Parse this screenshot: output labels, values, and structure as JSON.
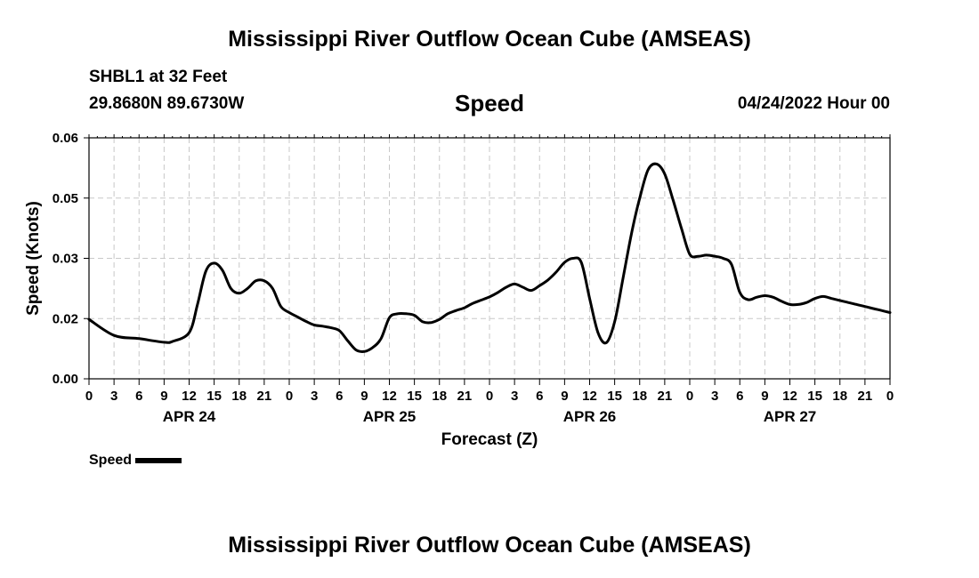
{
  "header": {
    "title": "Mississippi River Outflow Ocean Cube (AMSEAS)",
    "station": "SHBL1 at 32 Feet",
    "coords": "29.8680N  89.6730W",
    "subtitle": "Speed",
    "date": "04/24/2022 Hour 00"
  },
  "footer": {
    "title": "Mississippi River Outflow Ocean Cube (AMSEAS)"
  },
  "legend": {
    "label": "Speed"
  },
  "chart_data": {
    "type": "line",
    "title": "Speed",
    "xlabel": "Forecast (Z)",
    "ylabel": "Speed (Knots)",
    "xlim": [
      0,
      96
    ],
    "ylim": [
      0,
      0.06
    ],
    "yticks": [
      "0.00",
      "0.02",
      "0.03",
      "0.05",
      "0.06"
    ],
    "ytick_values": [
      0.0,
      0.015,
      0.03,
      0.045,
      0.06
    ],
    "xtick_labels": [
      "0",
      "3",
      "6",
      "9",
      "12",
      "15",
      "18",
      "21",
      "0",
      "3",
      "6",
      "9",
      "12",
      "15",
      "18",
      "21",
      "0",
      "3",
      "6",
      "9",
      "12",
      "15",
      "18",
      "21",
      "0",
      "3",
      "6",
      "9",
      "12",
      "15",
      "18",
      "21",
      "0"
    ],
    "day_labels": [
      {
        "label": "APR 24",
        "hour": 12
      },
      {
        "label": "APR 25",
        "hour": 36
      },
      {
        "label": "APR 26",
        "hour": 60
      },
      {
        "label": "APR 27",
        "hour": 84
      }
    ],
    "grid": true,
    "legend_position": "bottom-left",
    "series": [
      {
        "name": "Speed",
        "color": "#000000",
        "x": [
          0,
          3,
          6,
          9,
          10,
          12,
          13,
          14,
          15,
          16,
          17,
          18,
          19,
          20,
          21,
          22,
          23,
          24,
          25,
          26,
          27,
          28,
          29,
          30,
          31,
          32,
          33,
          34,
          35,
          36,
          37,
          38,
          39,
          40,
          41,
          42,
          43,
          44,
          45,
          46,
          47,
          48,
          49,
          50,
          51,
          52,
          53,
          54,
          55,
          56,
          57,
          58,
          59,
          60,
          61,
          62,
          63,
          64,
          65,
          66,
          67,
          68,
          69,
          70,
          71,
          72,
          73,
          74,
          75,
          76,
          77,
          78,
          79,
          80,
          81,
          82,
          83,
          84,
          85,
          86,
          87,
          88,
          89,
          90,
          91,
          92,
          93,
          94,
          95,
          96
        ],
        "y": [
          0.0148,
          0.0108,
          0.01,
          0.0091,
          0.0093,
          0.0115,
          0.0185,
          0.0268,
          0.0288,
          0.027,
          0.0225,
          0.0213,
          0.0225,
          0.0244,
          0.0244,
          0.0225,
          0.018,
          0.0165,
          0.0154,
          0.0143,
          0.0134,
          0.0131,
          0.0127,
          0.012,
          0.0095,
          0.0072,
          0.0068,
          0.0078,
          0.01,
          0.0152,
          0.0162,
          0.0162,
          0.0158,
          0.0142,
          0.014,
          0.0148,
          0.0162,
          0.017,
          0.0177,
          0.0188,
          0.0196,
          0.0204,
          0.0215,
          0.0228,
          0.0236,
          0.0228,
          0.022,
          0.0232,
          0.0246,
          0.0266,
          0.029,
          0.03,
          0.029,
          0.02,
          0.0115,
          0.009,
          0.0142,
          0.025,
          0.036,
          0.045,
          0.052,
          0.0535,
          0.051,
          0.0445,
          0.0375,
          0.031,
          0.0305,
          0.0308,
          0.0305,
          0.03,
          0.0285,
          0.0215,
          0.0197,
          0.0203,
          0.0207,
          0.0203,
          0.0193,
          0.0185,
          0.0185,
          0.019,
          0.02,
          0.0205,
          0.02,
          0.0195,
          0.019,
          0.0185,
          0.018,
          0.0175,
          0.017,
          0.0165
        ]
      }
    ]
  }
}
